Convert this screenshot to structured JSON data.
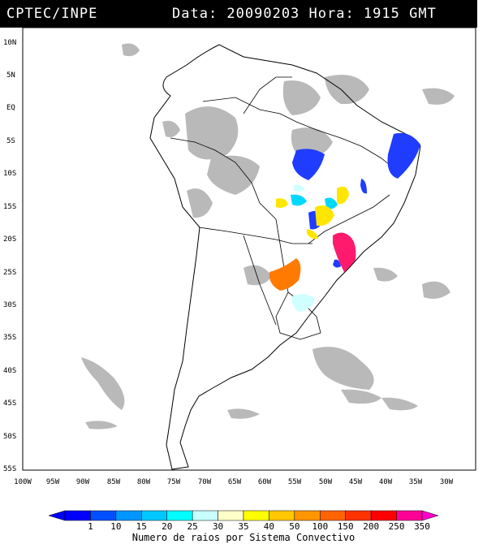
{
  "header": {
    "agency": "CPTEC/INPE",
    "datetime": "Data: 20090203 Hora: 1915 GMT"
  },
  "map": {
    "lat_labels": [
      "10N",
      "5N",
      "EQ",
      "5S",
      "10S",
      "15S",
      "20S",
      "25S",
      "30S",
      "35S",
      "40S",
      "45S",
      "50S",
      "55S"
    ],
    "lon_labels": [
      "100W",
      "95W",
      "90W",
      "85W",
      "80W",
      "75W",
      "70W",
      "65W",
      "60W",
      "55W",
      "50W",
      "45W",
      "40W",
      "35W",
      "30W"
    ]
  },
  "legend": {
    "values": [
      "1",
      "10",
      "15",
      "20",
      "25",
      "30",
      "35",
      "40",
      "50",
      "100",
      "150",
      "200",
      "250",
      "350"
    ],
    "colors": [
      "#0000ff",
      "#0050ff",
      "#0096ff",
      "#00c8ff",
      "#00ffff",
      "#c8ffff",
      "#ffffc8",
      "#ffff00",
      "#ffc800",
      "#ff9600",
      "#ff6400",
      "#ff3200",
      "#ff0000",
      "#ff0096",
      "#ff00c8"
    ],
    "title": "Numero de raios por Sistema Convectivo"
  },
  "colors": {
    "cloud": "#b4b4b4",
    "background": "#ffffff",
    "header": "#000000"
  }
}
